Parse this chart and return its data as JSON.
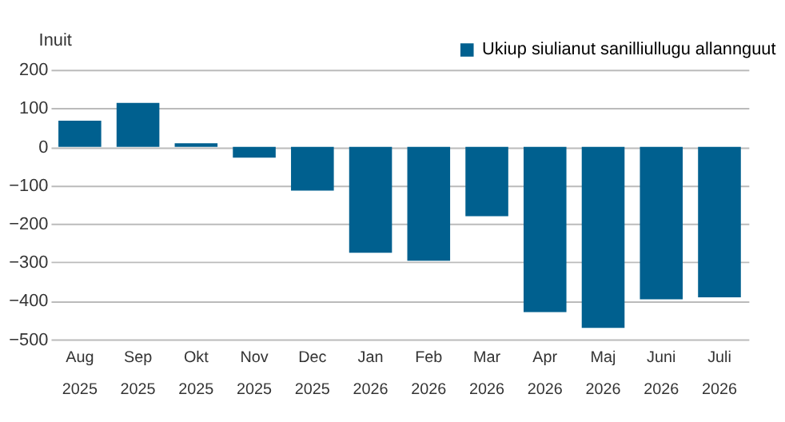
{
  "chart_data": {
    "type": "bar",
    "ylabel": "Inuit",
    "categories": [
      "Aug\n2025",
      "Sep\n2025",
      "Okt\n2025",
      "Nov\n2025",
      "Dec\n2025",
      "Jan\n2026",
      "Feb\n2026",
      "Mar\n2026",
      "Apr\n2026",
      "Maj\n2026",
      "Juni\n2026",
      "Juli\n2026"
    ],
    "series": [
      {
        "name": "Ukiup siulianut sanilliullugu allannguut",
        "color": "#00608f",
        "values": [
          68,
          114,
          9,
          -28,
          -114,
          -275,
          -296,
          -180,
          -429,
          -470,
          -396,
          -391
        ]
      }
    ],
    "ylim": [
      -500,
      200
    ],
    "yticks": [
      -500,
      -400,
      -300,
      -200,
      -100,
      0,
      100,
      200
    ],
    "grid": "y",
    "legend": "top right"
  }
}
